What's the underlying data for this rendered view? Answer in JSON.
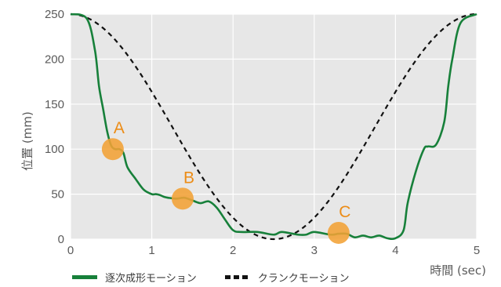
{
  "chart_data": {
    "type": "line",
    "xlabel": "時間 (sec)",
    "ylabel": "位置 (mm)",
    "xlim": [
      0,
      5
    ],
    "ylim": [
      0,
      250
    ],
    "xticks": [
      "0",
      "1",
      "2",
      "3",
      "4",
      "5"
    ],
    "yticks": [
      "0",
      "50",
      "100",
      "150",
      "200",
      "250"
    ],
    "grid": true,
    "legend_position": "bottom",
    "series": [
      {
        "name": "逐次成形モーション",
        "color": "#17803a",
        "style": "solid",
        "points": [
          [
            0,
            250
          ],
          [
            0.2,
            245
          ],
          [
            0.3,
            210
          ],
          [
            0.35,
            170
          ],
          [
            0.4,
            145
          ],
          [
            0.45,
            120
          ],
          [
            0.5,
            104
          ],
          [
            0.55,
            100
          ],
          [
            0.6,
            100
          ],
          [
            0.65,
            96
          ],
          [
            0.7,
            80
          ],
          [
            0.8,
            67
          ],
          [
            0.9,
            55
          ],
          [
            1.0,
            50
          ],
          [
            1.05,
            50
          ],
          [
            1.1,
            49
          ],
          [
            1.15,
            47
          ],
          [
            1.2,
            46
          ],
          [
            1.3,
            45
          ],
          [
            1.4,
            46
          ],
          [
            1.5,
            43
          ],
          [
            1.6,
            40
          ],
          [
            1.7,
            42
          ],
          [
            1.8,
            35
          ],
          [
            1.9,
            22
          ],
          [
            2.0,
            10
          ],
          [
            2.1,
            8
          ],
          [
            2.3,
            8
          ],
          [
            2.5,
            5
          ],
          [
            2.6,
            8
          ],
          [
            2.8,
            5
          ],
          [
            2.9,
            5
          ],
          [
            3.0,
            8
          ],
          [
            3.2,
            5
          ],
          [
            3.3,
            6
          ],
          [
            3.4,
            6
          ],
          [
            3.5,
            2
          ],
          [
            3.6,
            4
          ],
          [
            3.7,
            2
          ],
          [
            3.8,
            4
          ],
          [
            3.9,
            1
          ],
          [
            4.0,
            1
          ],
          [
            4.1,
            10
          ],
          [
            4.15,
            40
          ],
          [
            4.25,
            75
          ],
          [
            4.35,
            100
          ],
          [
            4.4,
            103
          ],
          [
            4.5,
            105
          ],
          [
            4.6,
            130
          ],
          [
            4.65,
            170
          ],
          [
            4.7,
            200
          ],
          [
            4.8,
            240
          ],
          [
            5.0,
            250
          ]
        ]
      },
      {
        "name": "クランクモーション",
        "color": "#111111",
        "style": "dashed",
        "function": "cosine",
        "amplitude": 125,
        "offset": 125,
        "period": 5
      }
    ],
    "annotations": [
      {
        "label": "A",
        "x": 0.52,
        "y": 100
      },
      {
        "label": "B",
        "x": 1.38,
        "y": 45
      },
      {
        "label": "C",
        "x": 3.3,
        "y": 7
      }
    ],
    "colors": {
      "plot_background": "#e7e7e7",
      "grid": "#ffffff",
      "annotation": "#f3a236",
      "annotation_label": "#ec8c16"
    }
  }
}
